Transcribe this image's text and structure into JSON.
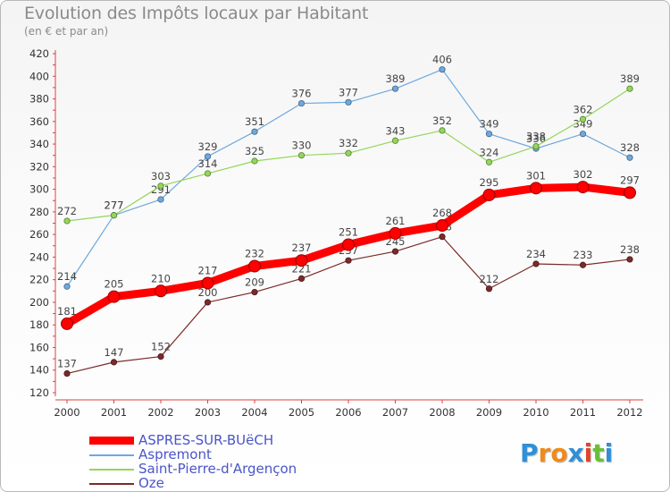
{
  "chart_data": {
    "type": "line",
    "title": "Evolution des Impôts locaux par Habitant",
    "subtitle": "(en € et par an)",
    "xlabel": "",
    "ylabel": "",
    "categories": [
      "2000",
      "2001",
      "2002",
      "2003",
      "2004",
      "2005",
      "2006",
      "2007",
      "2008",
      "2009",
      "2010",
      "2011",
      "2012"
    ],
    "ylim": [
      120,
      420
    ],
    "yticks": [
      120,
      140,
      160,
      180,
      200,
      220,
      240,
      260,
      280,
      300,
      320,
      340,
      360,
      380,
      400,
      420
    ],
    "grid": false,
    "legend_position": "bottom-left",
    "series": [
      {
        "name": "ASPRES-SUR-BUëCH",
        "color": "#ff0000",
        "emphasis": true,
        "values": [
          181,
          205,
          210,
          217,
          232,
          237,
          251,
          261,
          268,
          295,
          301,
          302,
          297
        ]
      },
      {
        "name": "Aspremont",
        "color": "#6fa8dc",
        "emphasis": false,
        "values": [
          214,
          277,
          291,
          329,
          351,
          376,
          377,
          389,
          406,
          349,
          336,
          349,
          328
        ]
      },
      {
        "name": "Saint-Pierre-d'Argençon",
        "color": "#93d659",
        "emphasis": false,
        "values": [
          272,
          277,
          303,
          314,
          325,
          330,
          332,
          343,
          352,
          324,
          338,
          362,
          389
        ]
      },
      {
        "name": "Oze",
        "color": "#7b2a2a",
        "emphasis": false,
        "values": [
          137,
          147,
          152,
          200,
          209,
          221,
          237,
          245,
          258,
          212,
          234,
          233,
          238
        ]
      }
    ]
  },
  "logo": {
    "letters": [
      "P",
      "r",
      "o",
      "x",
      "i",
      "t",
      "i"
    ],
    "colors": [
      "#2f8fd8",
      "#f08a1c",
      "#f08a1c",
      "#2f8fd8",
      "#e0452b",
      "#6abf3a",
      "#2f8fd8"
    ]
  }
}
